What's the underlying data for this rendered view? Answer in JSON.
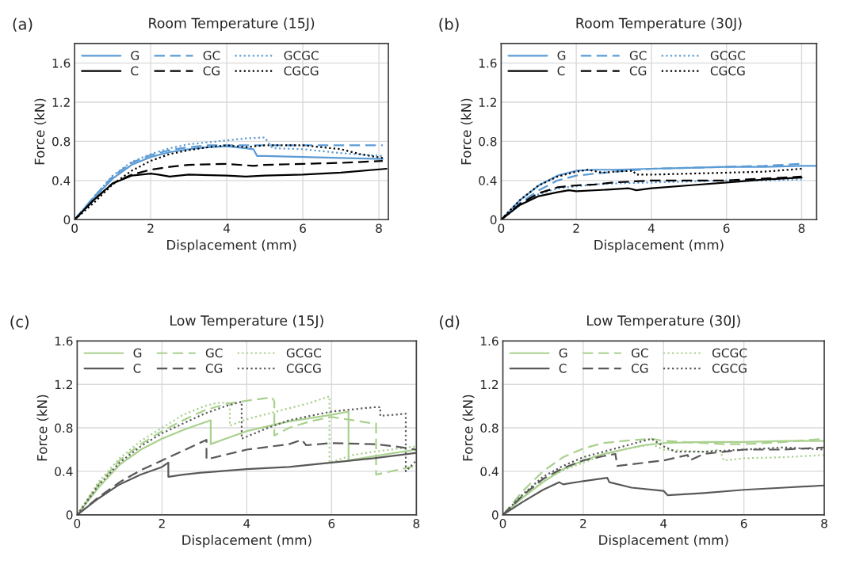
{
  "chart_data": [
    {
      "type": "line",
      "title": "Room Temperature (15J)",
      "xlabel": "Displacement (mm)",
      "ylabel": "Force (kN)",
      "annotations": [
        "(a)"
      ],
      "xlim": [
        0,
        8.25
      ],
      "ylim": [
        0,
        1.8
      ],
      "xticks": [
        0,
        2,
        4,
        6,
        8
      ],
      "yticks": [
        0,
        0.4,
        0.8,
        1.2,
        1.6
      ],
      "grid": true,
      "legend": "top left",
      "marker": "none",
      "series": [
        {
          "name": "G",
          "color": "#5b9bd5",
          "line_style": "solid",
          "x": [
            0,
            0.5,
            1,
            1.5,
            2,
            2.5,
            3,
            3.5,
            4,
            4.5,
            4.7,
            4.8,
            5,
            6,
            7,
            8.1
          ],
          "values": [
            0,
            0.22,
            0.42,
            0.56,
            0.64,
            0.69,
            0.72,
            0.74,
            0.75,
            0.73,
            0.72,
            0.65,
            0.65,
            0.64,
            0.63,
            0.62
          ]
        },
        {
          "name": "GC",
          "color": "#5b9bd5",
          "line_style": "dashed",
          "x": [
            0,
            0.5,
            1,
            1.5,
            2,
            2.5,
            3,
            3.5,
            4,
            5,
            6,
            7,
            8.1
          ],
          "values": [
            0,
            0.23,
            0.44,
            0.58,
            0.66,
            0.71,
            0.74,
            0.76,
            0.76,
            0.76,
            0.76,
            0.76,
            0.76
          ]
        },
        {
          "name": "GCGC",
          "color": "#5b9bd5",
          "line_style": "dotted",
          "x": [
            0,
            0.5,
            1,
            1.5,
            2,
            2.5,
            3,
            3.5,
            4,
            4.5,
            5,
            5.2,
            6,
            7,
            8.1
          ],
          "values": [
            0,
            0.23,
            0.45,
            0.59,
            0.67,
            0.73,
            0.77,
            0.79,
            0.81,
            0.83,
            0.84,
            0.73,
            0.72,
            0.68,
            0.65
          ]
        },
        {
          "name": "C",
          "color": "#000000",
          "line_style": "solid",
          "x": [
            0,
            0.5,
            1,
            1.5,
            2,
            2.2,
            2.5,
            3,
            4,
            4.5,
            5,
            6,
            7,
            8.2
          ],
          "values": [
            0,
            0.2,
            0.37,
            0.45,
            0.47,
            0.46,
            0.44,
            0.46,
            0.45,
            0.44,
            0.45,
            0.46,
            0.48,
            0.52
          ]
        },
        {
          "name": "CG",
          "color": "#000000",
          "line_style": "dashed",
          "x": [
            0,
            0.5,
            1,
            1.5,
            2,
            2.5,
            3,
            4,
            4.7,
            5,
            6,
            7,
            8.1
          ],
          "values": [
            0,
            0.2,
            0.37,
            0.46,
            0.51,
            0.54,
            0.56,
            0.57,
            0.55,
            0.56,
            0.57,
            0.58,
            0.6
          ]
        },
        {
          "name": "CGCG",
          "color": "#000000",
          "line_style": "dotted",
          "x": [
            0,
            0.5,
            1,
            1.5,
            2,
            2.5,
            3,
            3.5,
            4,
            4.5,
            5,
            6,
            6.5,
            7,
            7.5,
            8.1
          ],
          "values": [
            0,
            0.17,
            0.36,
            0.5,
            0.6,
            0.67,
            0.71,
            0.74,
            0.76,
            0.74,
            0.76,
            0.76,
            0.74,
            0.72,
            0.67,
            0.63
          ]
        }
      ]
    },
    {
      "type": "line",
      "title": "Room Temperature (30J)",
      "xlabel": "Displacement (mm)",
      "ylabel": "Force (kN)",
      "annotations": [
        "(b)"
      ],
      "xlim": [
        0,
        8.4
      ],
      "ylim": [
        0,
        1.8
      ],
      "xticks": [
        0,
        2,
        4,
        6,
        8
      ],
      "yticks": [
        0,
        0.4,
        0.8,
        1.2,
        1.6
      ],
      "grid": true,
      "legend": "top left",
      "marker": "none",
      "series": [
        {
          "name": "G",
          "color": "#5b9bd5",
          "line_style": "solid",
          "x": [
            0,
            0.5,
            1,
            1.5,
            2,
            2.5,
            3,
            4,
            5,
            6,
            7,
            8,
            8.4
          ],
          "values": [
            0,
            0.2,
            0.35,
            0.45,
            0.5,
            0.51,
            0.51,
            0.52,
            0.53,
            0.54,
            0.54,
            0.55,
            0.55
          ]
        },
        {
          "name": "GC",
          "color": "#5b9bd5",
          "line_style": "dashed",
          "x": [
            0,
            0.5,
            1,
            1.5,
            2,
            2.5,
            3,
            4,
            5,
            6,
            7,
            8
          ],
          "values": [
            0,
            0.17,
            0.3,
            0.4,
            0.45,
            0.47,
            0.49,
            0.52,
            0.53,
            0.54,
            0.55,
            0.57
          ]
        },
        {
          "name": "GCGC",
          "color": "#5b9bd5",
          "line_style": "dotted",
          "x": [
            0,
            0.5,
            1,
            1.5,
            2,
            2.5,
            3,
            4,
            5,
            6,
            7,
            8
          ],
          "values": [
            0,
            0.15,
            0.26,
            0.32,
            0.34,
            0.36,
            0.37,
            0.38,
            0.39,
            0.4,
            0.4,
            0.41
          ]
        },
        {
          "name": "C",
          "color": "#000000",
          "line_style": "solid",
          "x": [
            0,
            0.5,
            1,
            1.5,
            1.8,
            2,
            3,
            3.4,
            3.6,
            4,
            5,
            6,
            7,
            8
          ],
          "values": [
            0,
            0.15,
            0.24,
            0.28,
            0.3,
            0.29,
            0.31,
            0.32,
            0.3,
            0.32,
            0.35,
            0.38,
            0.41,
            0.43
          ]
        },
        {
          "name": "CG",
          "color": "#000000",
          "line_style": "dashed",
          "x": [
            0,
            0.5,
            1,
            1.5,
            2,
            2.5,
            3,
            4,
            5,
            6,
            7,
            8
          ],
          "values": [
            0,
            0.16,
            0.27,
            0.33,
            0.35,
            0.36,
            0.38,
            0.4,
            0.4,
            0.4,
            0.42,
            0.44
          ]
        },
        {
          "name": "CGCG",
          "color": "#000000",
          "line_style": "dotted",
          "x": [
            0,
            0.5,
            1,
            1.5,
            2,
            2.3,
            2.7,
            3,
            3.5,
            3.6,
            4,
            5,
            6,
            7,
            8
          ],
          "values": [
            0,
            0.2,
            0.35,
            0.44,
            0.49,
            0.51,
            0.48,
            0.49,
            0.5,
            0.46,
            0.46,
            0.47,
            0.48,
            0.49,
            0.52
          ]
        }
      ]
    },
    {
      "type": "line",
      "title": "Low Temperature (15J)",
      "xlabel": "Displacement (mm)",
      "ylabel": "Force (kN)",
      "annotations": [
        "(c)"
      ],
      "xlim": [
        0,
        8
      ],
      "ylim": [
        0,
        1.6
      ],
      "xticks": [
        0,
        2,
        4,
        6,
        8
      ],
      "yticks": [
        0,
        0.4,
        0.8,
        1.2,
        1.6
      ],
      "grid": true,
      "legend": "top left",
      "marker": "none",
      "series": [
        {
          "name": "G",
          "color": "#a9d18e",
          "line_style": "solid",
          "x": [
            0,
            0.5,
            1,
            1.5,
            2,
            2.5,
            3,
            3.15,
            3.15,
            3.5,
            4,
            5,
            6,
            6.4,
            6.4,
            7,
            8
          ],
          "values": [
            0,
            0.25,
            0.46,
            0.6,
            0.7,
            0.78,
            0.85,
            0.87,
            0.65,
            0.7,
            0.77,
            0.86,
            0.92,
            0.95,
            0.5,
            0.54,
            0.6
          ]
        },
        {
          "name": "GC",
          "color": "#a9d18e",
          "line_style": "dashed",
          "x": [
            0,
            0.5,
            1,
            1.5,
            2,
            2.5,
            3,
            3.5,
            4,
            4.6,
            4.65,
            4.65,
            5,
            5.5,
            6,
            6.5,
            7,
            7.05,
            7.05,
            8
          ],
          "values": [
            0,
            0.28,
            0.5,
            0.65,
            0.77,
            0.87,
            0.96,
            1.02,
            1.05,
            1.08,
            1.04,
            0.73,
            0.8,
            0.86,
            0.9,
            0.87,
            0.84,
            0.84,
            0.37,
            0.45
          ]
        },
        {
          "name": "GCGC",
          "color": "#a9d18e",
          "line_style": "dotted",
          "x": [
            0,
            0.5,
            1,
            1.5,
            2,
            2.5,
            3,
            3.3,
            3.6,
            3.6,
            4,
            4.5,
            5,
            5.5,
            5.95,
            5.95,
            6.5,
            7,
            8
          ],
          "values": [
            0,
            0.3,
            0.52,
            0.68,
            0.8,
            0.92,
            1.0,
            1.03,
            1.03,
            0.82,
            0.88,
            0.93,
            0.98,
            1.03,
            1.09,
            0.48,
            0.55,
            0.58,
            0.63
          ]
        },
        {
          "name": "C",
          "color": "#595959",
          "line_style": "solid",
          "x": [
            0,
            0.5,
            1,
            1.5,
            2,
            2.15,
            2.15,
            2.5,
            3,
            4,
            5,
            6,
            7,
            8
          ],
          "values": [
            0,
            0.15,
            0.28,
            0.37,
            0.44,
            0.48,
            0.35,
            0.37,
            0.39,
            0.42,
            0.44,
            0.48,
            0.52,
            0.57
          ]
        },
        {
          "name": "CG",
          "color": "#595959",
          "line_style": "dashed",
          "x": [
            0,
            0.5,
            1,
            1.5,
            2,
            2.5,
            3.05,
            3.05,
            4,
            5,
            5.3,
            5.4,
            6,
            7,
            7.5,
            8
          ],
          "values": [
            0,
            0.16,
            0.3,
            0.41,
            0.5,
            0.59,
            0.69,
            0.51,
            0.6,
            0.65,
            0.69,
            0.64,
            0.66,
            0.65,
            0.63,
            0.6
          ]
        },
        {
          "name": "CGCG",
          "color": "#595959",
          "line_style": "dotted",
          "x": [
            0,
            0.5,
            1,
            1.5,
            2,
            2.5,
            3,
            3.5,
            3.88,
            3.88,
            4.5,
            5,
            6,
            7,
            7.15,
            7.15,
            7.75,
            7.75,
            8
          ],
          "values": [
            0,
            0.27,
            0.48,
            0.63,
            0.75,
            0.84,
            0.93,
            1.0,
            1.04,
            0.7,
            0.8,
            0.87,
            0.95,
            0.99,
            0.99,
            0.91,
            0.93,
            0.4,
            0.5
          ]
        }
      ]
    },
    {
      "type": "line",
      "title": "Low Temperature (30J)",
      "xlabel": "Displacement (mm)",
      "ylabel": "Force (kN)",
      "annotations": [
        "(d)"
      ],
      "xlim": [
        0,
        8
      ],
      "ylim": [
        0,
        1.6
      ],
      "xticks": [
        0,
        2,
        4,
        6,
        8
      ],
      "yticks": [
        0,
        0.4,
        0.8,
        1.2,
        1.6
      ],
      "grid": true,
      "legend": "top left",
      "marker": "none",
      "series": [
        {
          "name": "G",
          "color": "#a9d18e",
          "line_style": "solid",
          "x": [
            0,
            0.5,
            1,
            1.5,
            2,
            2.5,
            3,
            3.5,
            4,
            5,
            6,
            7,
            8
          ],
          "values": [
            0,
            0.16,
            0.3,
            0.42,
            0.5,
            0.56,
            0.6,
            0.64,
            0.66,
            0.67,
            0.67,
            0.68,
            0.68
          ]
        },
        {
          "name": "GC",
          "color": "#a9d18e",
          "line_style": "dashed",
          "x": [
            0,
            0.5,
            1,
            1.5,
            2,
            2.5,
            3,
            3.7,
            4,
            5,
            5.5,
            6,
            7,
            8
          ],
          "values": [
            0,
            0.22,
            0.4,
            0.53,
            0.61,
            0.66,
            0.68,
            0.7,
            0.68,
            0.66,
            0.65,
            0.65,
            0.67,
            0.7
          ]
        },
        {
          "name": "GCGC",
          "color": "#a9d18e",
          "line_style": "dotted",
          "x": [
            0,
            0.5,
            1,
            1.5,
            2,
            2.5,
            3,
            3.7,
            4,
            5,
            5.4,
            5.5,
            6,
            7,
            8
          ],
          "values": [
            0,
            0.17,
            0.31,
            0.41,
            0.48,
            0.55,
            0.6,
            0.65,
            0.6,
            0.58,
            0.6,
            0.5,
            0.52,
            0.53,
            0.55
          ]
        },
        {
          "name": "C",
          "color": "#595959",
          "line_style": "solid",
          "x": [
            0,
            0.5,
            1,
            1.4,
            1.5,
            2,
            2.6,
            2.65,
            3.2,
            4,
            4.1,
            5,
            6,
            7,
            8
          ],
          "values": [
            0,
            0.12,
            0.23,
            0.3,
            0.28,
            0.31,
            0.34,
            0.3,
            0.25,
            0.22,
            0.18,
            0.2,
            0.23,
            0.25,
            0.27
          ]
        },
        {
          "name": "CG",
          "color": "#595959",
          "line_style": "dashed",
          "x": [
            0,
            0.5,
            1,
            1.5,
            2,
            2.5,
            2.8,
            2.85,
            4,
            4.6,
            4.65,
            5,
            6,
            7,
            8
          ],
          "values": [
            0,
            0.18,
            0.33,
            0.43,
            0.5,
            0.54,
            0.56,
            0.45,
            0.5,
            0.55,
            0.5,
            0.56,
            0.6,
            0.6,
            0.62
          ]
        },
        {
          "name": "CGCG",
          "color": "#595959",
          "line_style": "dotted",
          "x": [
            0,
            0.5,
            1,
            1.5,
            2,
            2.5,
            3,
            3.7,
            4,
            4.3,
            5,
            6,
            7,
            8
          ],
          "values": [
            0,
            0.19,
            0.35,
            0.45,
            0.53,
            0.58,
            0.63,
            0.7,
            0.63,
            0.58,
            0.58,
            0.6,
            0.62,
            0.6
          ]
        }
      ]
    }
  ]
}
